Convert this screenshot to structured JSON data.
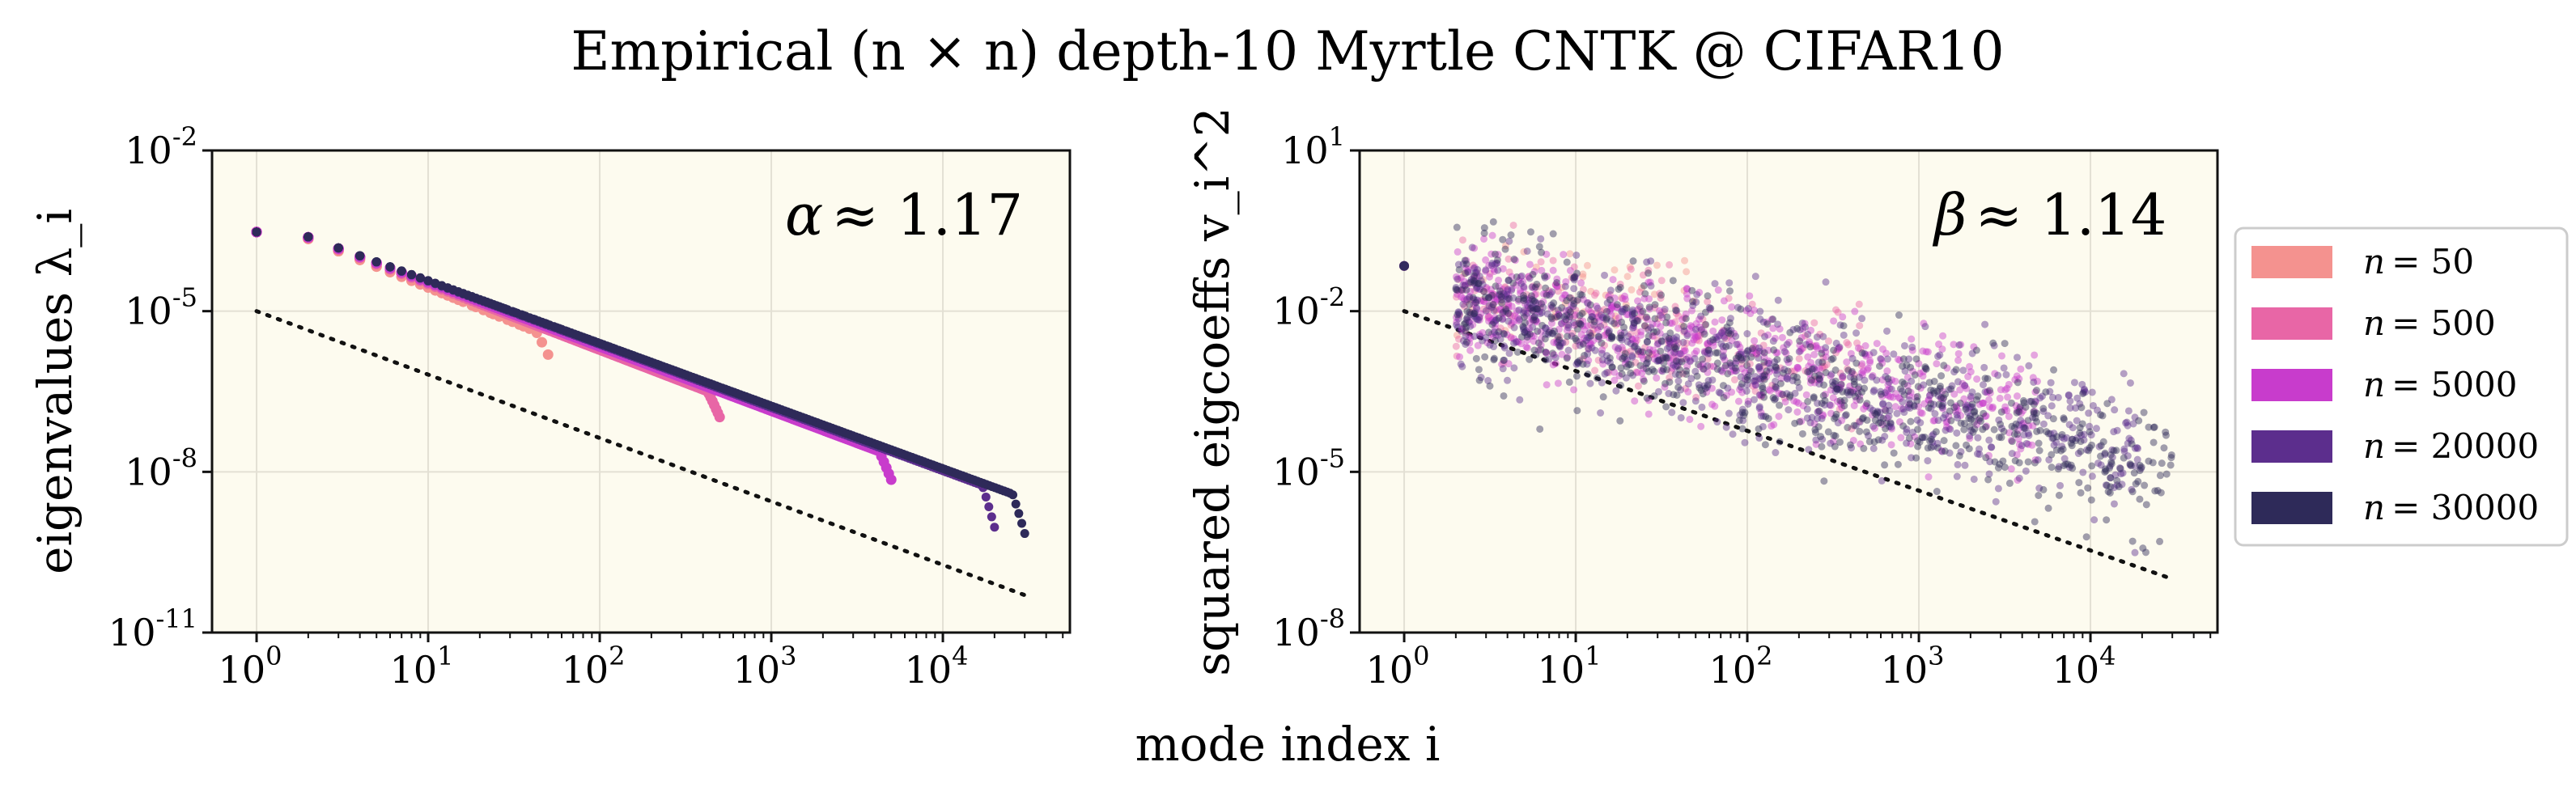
{
  "figure": {
    "title": "Empirical (n × n) depth-10 Myrtle CNTK @ CIFAR10",
    "shared_xlabel": "mode index i"
  },
  "colors": {
    "panel_bg": "#fdfbef",
    "grid": "#e3e0d4",
    "series": [
      "#f4928f",
      "#e866a6",
      "#c83ccc",
      "#5c2e8d",
      "#2e2a59"
    ]
  },
  "chart_data": [
    {
      "type": "scatter",
      "title": "",
      "xlabel": "",
      "ylabel": "eigenvalues λ_i",
      "xscale": "log",
      "yscale": "log",
      "xlim": [
        0.55,
        55000
      ],
      "ylim": [
        1e-11,
        0.01
      ],
      "xticks": [
        {
          "v": 1,
          "e": "0"
        },
        {
          "v": 10,
          "e": "1"
        },
        {
          "v": 100,
          "e": "2"
        },
        {
          "v": 1000,
          "e": "3"
        },
        {
          "v": 10000,
          "e": "4"
        }
      ],
      "yticks": [
        {
          "v": 1e-11,
          "e": "-11"
        },
        {
          "v": 1e-08,
          "e": "-8"
        },
        {
          "v": 1e-05,
          "e": "-5"
        },
        {
          "v": 0.01,
          "e": "-2"
        }
      ],
      "grid": true,
      "annotation": {
        "symbol": "α",
        "text": "≈ 1.17"
      },
      "reference_line": {
        "x": [
          1,
          30000
        ],
        "y": [
          1e-05,
          5e-11
        ],
        "style": "dotted"
      },
      "series": [
        {
          "name": "n = 50",
          "n": 50,
          "y_at_1": 0.00055,
          "slope": 1.3,
          "tail_drop": 2.2
        },
        {
          "name": "n = 500",
          "n": 500,
          "y_at_1": 0.00055,
          "slope": 1.23,
          "tail_drop": 2.5
        },
        {
          "name": "n = 5000",
          "n": 5000,
          "y_at_1": 0.00055,
          "slope": 1.2,
          "tail_drop": 2.8
        },
        {
          "name": "n = 20000",
          "n": 20000,
          "y_at_1": 0.00055,
          "slope": 1.18,
          "tail_drop": 5.0
        },
        {
          "name": "n = 30000",
          "n": 30000,
          "y_at_1": 0.00055,
          "slope": 1.17,
          "tail_drop": 4.5
        }
      ]
    },
    {
      "type": "scatter",
      "title": "",
      "xlabel": "",
      "ylabel": "squared eigcoeffs v_i^2",
      "xscale": "log",
      "yscale": "log",
      "xlim": [
        0.55,
        55000
      ],
      "ylim": [
        1e-08,
        10
      ],
      "xticks": [
        {
          "v": 1,
          "e": "0"
        },
        {
          "v": 10,
          "e": "1"
        },
        {
          "v": 100,
          "e": "2"
        },
        {
          "v": 1000,
          "e": "3"
        },
        {
          "v": 10000,
          "e": "4"
        }
      ],
      "yticks": [
        {
          "v": 1e-08,
          "e": "-8"
        },
        {
          "v": 1e-05,
          "e": "-5"
        },
        {
          "v": 0.01,
          "e": "-2"
        },
        {
          "v": 10,
          "e": "1"
        }
      ],
      "grid": true,
      "annotation": {
        "symbol": "β",
        "text": "≈ 1.14"
      },
      "reference_line": {
        "x": [
          1,
          30000
        ],
        "y": [
          0.01,
          1e-07
        ],
        "style": "dotted"
      },
      "series": [
        {
          "name": "n = 50",
          "n": 50,
          "first_point": 0.07,
          "curve": [
            [
              2,
              0.018
            ],
            [
              10,
              0.02
            ],
            [
              50,
              0.02
            ]
          ],
          "spread": 0.5
        },
        {
          "name": "n = 500",
          "n": 500,
          "first_point": 0.07,
          "curve": [
            [
              2,
              0.018
            ],
            [
              10,
              0.008
            ],
            [
              100,
              0.002
            ],
            [
              500,
              0.0012
            ]
          ],
          "spread": 0.55
        },
        {
          "name": "n = 5000",
          "n": 5000,
          "first_point": 0.07,
          "curve": [
            [
              2,
              0.018
            ],
            [
              10,
              0.006
            ],
            [
              100,
              0.0012
            ],
            [
              1000,
              0.0003
            ],
            [
              5000,
              0.00012
            ]
          ],
          "spread": 0.55
        },
        {
          "name": "n = 20000",
          "n": 20000,
          "first_point": 0.07,
          "curve": [
            [
              2,
              0.018
            ],
            [
              10,
              0.005
            ],
            [
              100,
              0.0009
            ],
            [
              1000,
              0.00018
            ],
            [
              10000,
              4e-05
            ],
            [
              20000,
              2.5e-05
            ]
          ],
          "spread": 0.6
        },
        {
          "name": "n = 30000",
          "n": 30000,
          "first_point": 0.07,
          "curve": [
            [
              2,
              0.018
            ],
            [
              10,
              0.005
            ],
            [
              100,
              0.0008
            ],
            [
              1000,
              0.00012
            ],
            [
              10000,
              2.5e-05
            ],
            [
              30000,
              1.2e-05
            ]
          ],
          "spread": 0.6
        }
      ]
    }
  ],
  "legend": {
    "placement": "right",
    "entries": [
      {
        "prefix": "n",
        "value": "= 50"
      },
      {
        "prefix": "n",
        "value": "= 500"
      },
      {
        "prefix": "n",
        "value": "= 5000"
      },
      {
        "prefix": "n",
        "value": "= 20000"
      },
      {
        "prefix": "n",
        "value": "= 30000"
      }
    ]
  }
}
